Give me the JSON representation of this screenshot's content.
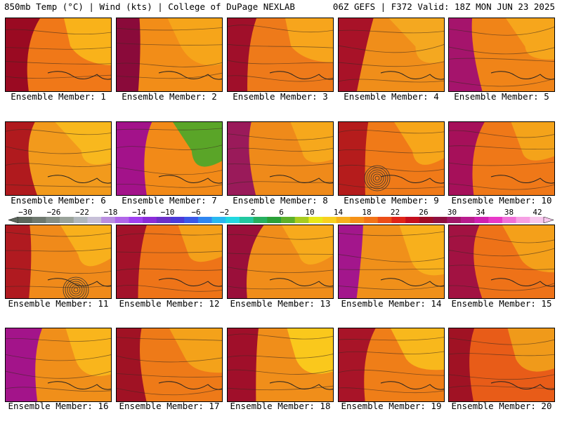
{
  "header": {
    "left": "850mb Temp (°C) | Wind (kts) | College of DuPage NEXLAB",
    "right": "06Z GEFS | F372 Valid: 18Z MON JUN 23 2025"
  },
  "panel_label_prefix": "Ensemble Member: ",
  "members": [
    {
      "label": "Ensemble Member: 1",
      "base": "#f07818",
      "hot": "#9a0a22",
      "extra": "#f9b21a"
    },
    {
      "label": "Ensemble Member: 2",
      "base": "#f28d18",
      "hot": "#8a0a3a",
      "extra": "#f6a51a"
    },
    {
      "label": "Ensemble Member: 3",
      "base": "#ee7a1a",
      "hot": "#a00f2a",
      "extra": "#f7a51c"
    },
    {
      "label": "Ensemble Member: 4",
      "base": "#f08e1a",
      "hot": "#a81228",
      "extra": "#f4a820"
    },
    {
      "label": "Ensemble Member: 5",
      "base": "#f08418",
      "hot": "#a5146c",
      "extra": "#f6a61c"
    },
    {
      "label": "Ensemble Member: 6",
      "base": "#f29a1c",
      "hot": "#b01a1e",
      "extra": "#f8b81e"
    },
    {
      "label": "Ensemble Member: 7",
      "base": "#f28a18",
      "hot": "#a3128a",
      "extra": "#5aa528"
    },
    {
      "label": "Ensemble Member: 8",
      "base": "#ef8a1a",
      "hot": "#9a1a5a",
      "extra": "#f6a81c"
    },
    {
      "label": "Ensemble Member: 9",
      "base": "#f07a18",
      "hot": "#b51c1c",
      "extra": "#f7a61a"
    },
    {
      "label": "Ensemble Member: 10",
      "base": "#ef7818",
      "hot": "#a6105a",
      "extra": "#f4a31a"
    },
    {
      "label": "Ensemble Member: 11",
      "base": "#f08a1a",
      "hot": "#b01a20",
      "extra": "#f8b01c"
    },
    {
      "label": "Ensemble Member: 12",
      "base": "#ee7418",
      "hot": "#a3122a",
      "extra": "#f4a01a"
    },
    {
      "label": "Ensemble Member: 13",
      "base": "#f08d1a",
      "hot": "#9a0f3a",
      "extra": "#f7aa1c"
    },
    {
      "label": "Ensemble Member: 14",
      "base": "#f0901a",
      "hot": "#a3168c",
      "extra": "#f8b01c"
    },
    {
      "label": "Ensemble Member: 15",
      "base": "#ee7218",
      "hot": "#a21242",
      "extra": "#f4a01a"
    },
    {
      "label": "Ensemble Member: 16",
      "base": "#f08f1a",
      "hot": "#a3148a",
      "extra": "#f9b51c"
    },
    {
      "label": "Ensemble Member: 17",
      "base": "#ee7a18",
      "hot": "#a01224",
      "extra": "#f4a21a"
    },
    {
      "label": "Ensemble Member: 18",
      "base": "#f08e1a",
      "hot": "#a00f2a",
      "extra": "#fac81c"
    },
    {
      "label": "Ensemble Member: 19",
      "base": "#ef7e18",
      "hot": "#a81428",
      "extra": "#f8b81c"
    },
    {
      "label": "Ensemble Member: 20",
      "base": "#e85c18",
      "hot": "#a01224",
      "extra": "#f09a1a"
    }
  ],
  "colorbar": {
    "labels": [
      "−30",
      "−26",
      "−22",
      "−18",
      "−14",
      "−10",
      "−6",
      "−2",
      "2",
      "6",
      "10",
      "14",
      "18",
      "22",
      "26",
      "30",
      "34",
      "38",
      "42"
    ],
    "colors": [
      "#5c665c",
      "#6e786e",
      "#858e85",
      "#9aa39a",
      "#b0b7bc",
      "#c7c0d8",
      "#b98ee0",
      "#b066e8",
      "#a040f0",
      "#8a2cd8",
      "#6c30c8",
      "#4a3ad8",
      "#3a58e8",
      "#2f86f0",
      "#28b8f0",
      "#22d8e0",
      "#22c8a0",
      "#26b060",
      "#2aa038",
      "#5cb02a",
      "#a8cc20",
      "#e8e81a",
      "#f8d020",
      "#f6b01c",
      "#f59218",
      "#f27418",
      "#ec4e18",
      "#e02418",
      "#c40e1e",
      "#a00d26",
      "#8e1040",
      "#a01868",
      "#b81c8c",
      "#d020b0",
      "#e838c8",
      "#f070d8",
      "#f6a0e4",
      "#f8c8ee"
    ]
  }
}
